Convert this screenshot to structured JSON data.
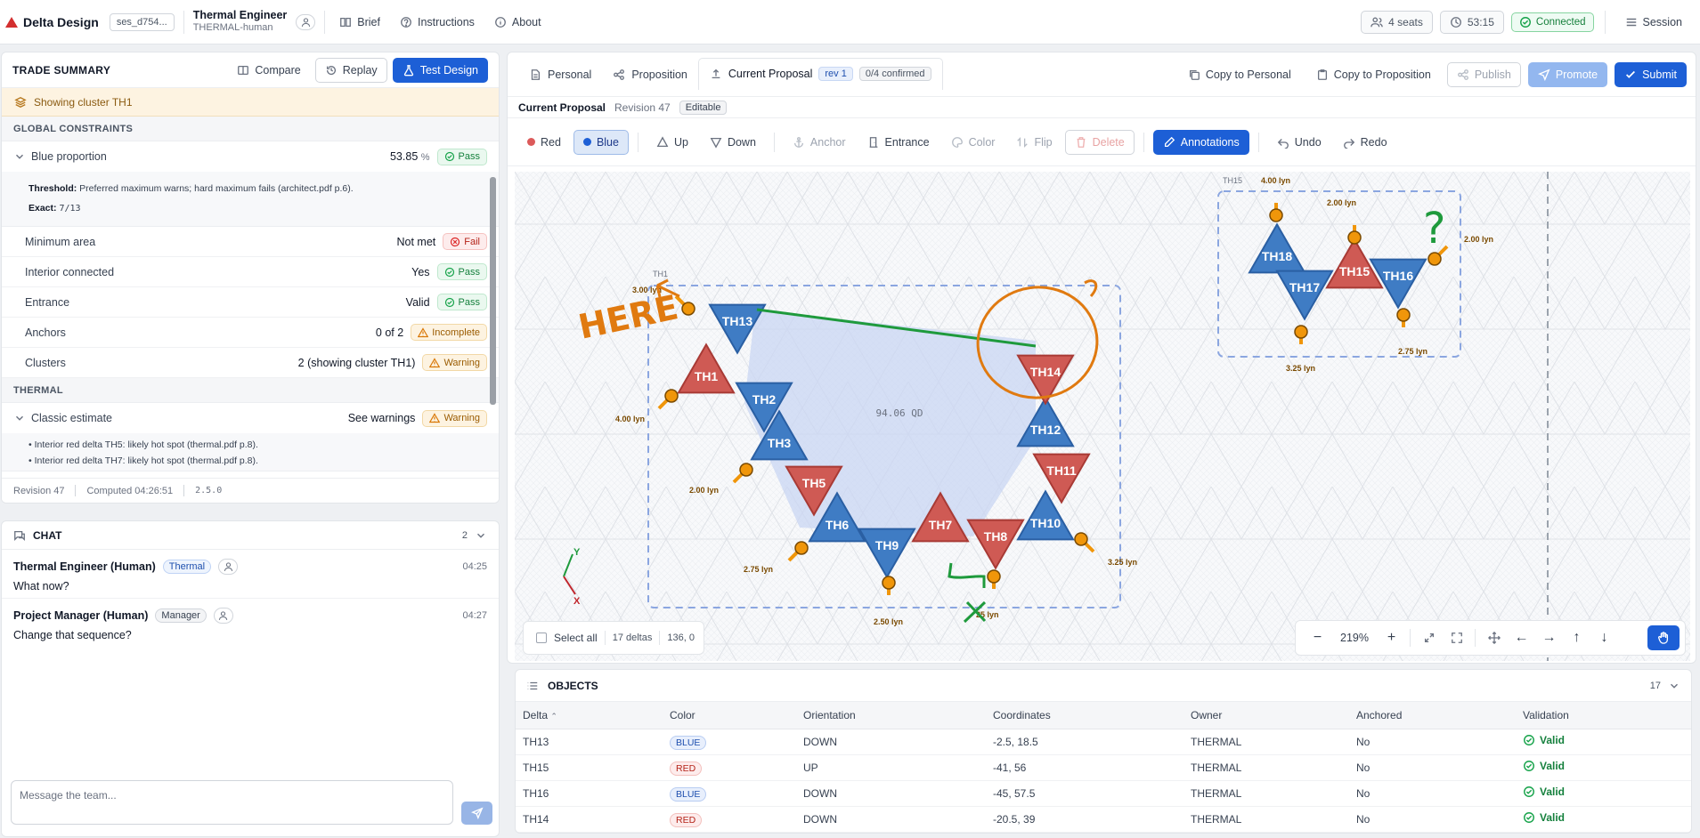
{
  "app": {
    "title": "Delta Design",
    "session": "ses_d754...",
    "user_name": "Thermal Engineer",
    "user_role": "THERMAL-human"
  },
  "nav": [
    "Brief",
    "Instructions",
    "About"
  ],
  "status": {
    "seats": "4 seats",
    "timer": "53:15",
    "connection": "Connected",
    "session": "Session"
  },
  "trade": {
    "title": "TRADE SUMMARY",
    "compare": "Compare",
    "replay": "Replay",
    "test": "Test Design",
    "cluster": "Showing cluster TH1",
    "global_hdr": "GLOBAL CONSTRAINTS",
    "blue": {
      "label": "Blue proportion",
      "value": "53.85",
      "unit": "%",
      "status": "Pass"
    },
    "threshold_label": "Threshold:",
    "threshold_text": "Preferred maximum warns; hard maximum fails (architect.pdf p.6).",
    "exact_label": "Exact:",
    "exact_value": "7/13",
    "rows": [
      {
        "label": "Minimum area",
        "value": "Not met",
        "status": "Fail",
        "kind": "fail"
      },
      {
        "label": "Interior connected",
        "value": "Yes",
        "status": "Pass",
        "kind": "pass"
      },
      {
        "label": "Entrance",
        "value": "Valid",
        "status": "Pass",
        "kind": "pass"
      },
      {
        "label": "Anchors",
        "value": "0 of 2",
        "status": "Incomplete",
        "kind": "warn"
      },
      {
        "label": "Clusters",
        "value": "2 (showing cluster TH1)",
        "status": "Warning",
        "kind": "warn"
      }
    ],
    "thermal_hdr": "THERMAL",
    "classic": {
      "label": "Classic estimate",
      "value": "See warnings",
      "status": "Warning"
    },
    "bullets": [
      "Interior red delta TH5: likely hot spot (thermal.pdf p.8).",
      "Interior red delta TH7: likely hot spot (thermal.pdf p.8)."
    ],
    "foot": {
      "revision": "Revision 47",
      "computed": "Computed 04:26:51",
      "version": "2.5.0"
    }
  },
  "chat": {
    "title": "CHAT",
    "count": "2",
    "placeholder": "Message the team...",
    "messages": [
      {
        "name": "Thermal Engineer (Human)",
        "tag": "Thermal",
        "time": "04:25",
        "text": "What now?"
      },
      {
        "name": "Project Manager (Human)",
        "tag": "Manager",
        "time": "04:27",
        "text": "Change that sequence?"
      }
    ]
  },
  "main": {
    "tabs": [
      "Personal",
      "Proposition",
      "Current Proposal"
    ],
    "rev_badge": "rev 1",
    "confirmed": "0/4 confirmed",
    "copy_personal": "Copy to Personal",
    "copy_proposition": "Copy to Proposition",
    "publish": "Publish",
    "promote": "Promote",
    "submit": "Submit",
    "sub_title": "Current Proposal",
    "sub_revision": "Revision 47",
    "sub_state": "Editable"
  },
  "toolbar": {
    "red": "Red",
    "blue": "Blue",
    "up": "Up",
    "down": "Down",
    "anchor": "Anchor",
    "entrance": "Entrance",
    "color": "Color",
    "flip": "Flip",
    "delete": "Delete",
    "annotations": "Annotations",
    "undo": "Undo",
    "redo": "Redo"
  },
  "colors": {
    "blue_fill": "#3f7cc4",
    "red_fill": "#cf5a54",
    "anchor": "#f0960a",
    "accent": "#1d5fd6",
    "annot_orange": "#e07a10",
    "annot_green": "#1e9a3c"
  },
  "canvas": {
    "cluster1": "TH1",
    "cluster2": "TH15",
    "area": "94.06 QD",
    "deltas": [
      "TH13",
      "TH1",
      "TH2",
      "TH3",
      "TH5",
      "TH6",
      "TH9",
      "TH7",
      "TH8",
      "TH10",
      "TH11",
      "TH12",
      "TH14",
      "TH18",
      "TH17",
      "TH15",
      "TH16"
    ],
    "lengths": [
      "3.00 lyn",
      "4.00 lyn",
      "2.00 lyn",
      "2.75 lyn",
      "2.50 lyn",
      "25 lyn",
      "3.25 lyn",
      "4.00 lyn",
      "2.00 lyn",
      "2.00 lyn",
      "3.25 lyn",
      "2.75 lyn"
    ],
    "axis_y": "Y",
    "axis_x": "X",
    "annot_text": "HERE",
    "annot_q": "?",
    "select_all": "Select all",
    "delta_count": "17 deltas",
    "cursor": "136, 0",
    "zoom": "219%"
  },
  "objects": {
    "title": "OBJECTS",
    "count": "17",
    "columns": [
      "Delta",
      "Color",
      "Orientation",
      "Coordinates",
      "Owner",
      "Anchored",
      "Validation"
    ],
    "rows": [
      {
        "delta": "TH13",
        "color": "BLUE",
        "orientation": "DOWN",
        "coords": "-2.5, 18.5",
        "owner": "THERMAL",
        "anchored": "No",
        "validation": "Valid"
      },
      {
        "delta": "TH15",
        "color": "RED",
        "orientation": "UP",
        "coords": "-41, 56",
        "owner": "THERMAL",
        "anchored": "No",
        "validation": "Valid"
      },
      {
        "delta": "TH16",
        "color": "BLUE",
        "orientation": "DOWN",
        "coords": "-45, 57.5",
        "owner": "THERMAL",
        "anchored": "No",
        "validation": "Valid"
      },
      {
        "delta": "TH14",
        "color": "RED",
        "orientation": "DOWN",
        "coords": "-20.5, 39",
        "owner": "THERMAL",
        "anchored": "No",
        "validation": "Valid"
      }
    ]
  }
}
